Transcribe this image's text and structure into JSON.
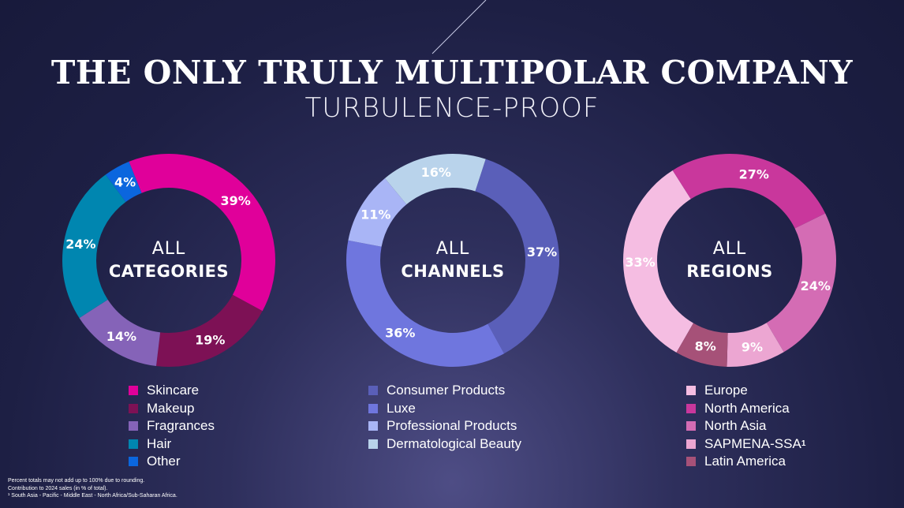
{
  "title": "THE ONLY TRULY MULTIPOLAR COMPANY",
  "subtitle": "TURBULENCE-PROOF",
  "chart_data": [
    {
      "type": "pie",
      "center_line1": "ALL",
      "center_line2": "CATEGORIES",
      "start_angle_deg": 248,
      "slices": [
        {
          "label": "Skincare",
          "value": 39,
          "color": "#e0009a",
          "text": "39%"
        },
        {
          "label": "Makeup",
          "value": 19,
          "color": "#7d1155",
          "text": "19%"
        },
        {
          "label": "Fragrances",
          "value": 14,
          "color": "#8563b8",
          "text": "14%"
        },
        {
          "label": "Hair",
          "value": 24,
          "color": "#0086b0",
          "text": "24%"
        },
        {
          "label": "Other",
          "value": 4,
          "color": "#0b66de",
          "text": "4%"
        }
      ]
    },
    {
      "type": "pie",
      "center_line1": "ALL",
      "center_line2": "CHANNELS",
      "start_angle_deg": 288,
      "slices": [
        {
          "label": "Consumer Products",
          "value": 37,
          "color": "#5a5fb9",
          "text": "37%"
        },
        {
          "label": "Luxe",
          "value": 36,
          "color": "#6f76de",
          "text": "36%"
        },
        {
          "label": "Professional Products",
          "value": 11,
          "color": "#a9b5f6",
          "text": "11%"
        },
        {
          "label": "Dermatological Beauty",
          "value": 16,
          "color": "#b9d3eb",
          "text": "16%"
        }
      ]
    },
    {
      "type": "pie",
      "center_line1": "ALL",
      "center_line2": "REGIONS",
      "start_angle_deg": 120,
      "slices": [
        {
          "label": "Europe",
          "value": 33,
          "color": "#f5bde2",
          "text": "33%"
        },
        {
          "label": "North America",
          "value": 27,
          "color": "#c9379c",
          "text": "27%"
        },
        {
          "label": "North Asia",
          "value": 24,
          "color": "#d46cb4",
          "text": "24%"
        },
        {
          "label": "SAPMENA-SSA",
          "value": 9,
          "color": "#eca6d2",
          "text": "9%"
        },
        {
          "label": "Latin America",
          "value": 8,
          "color": "#a65178",
          "text": "8%"
        }
      ]
    }
  ],
  "legend_superscript": "1",
  "footnotes": [
    "Percent totals may not add up to 100% due to rounding.",
    "Contribution to 2024 sales (in % of total).",
    "¹ South Asia - Pacific - Middle East - North Africa/Sub-Saharan Africa."
  ]
}
